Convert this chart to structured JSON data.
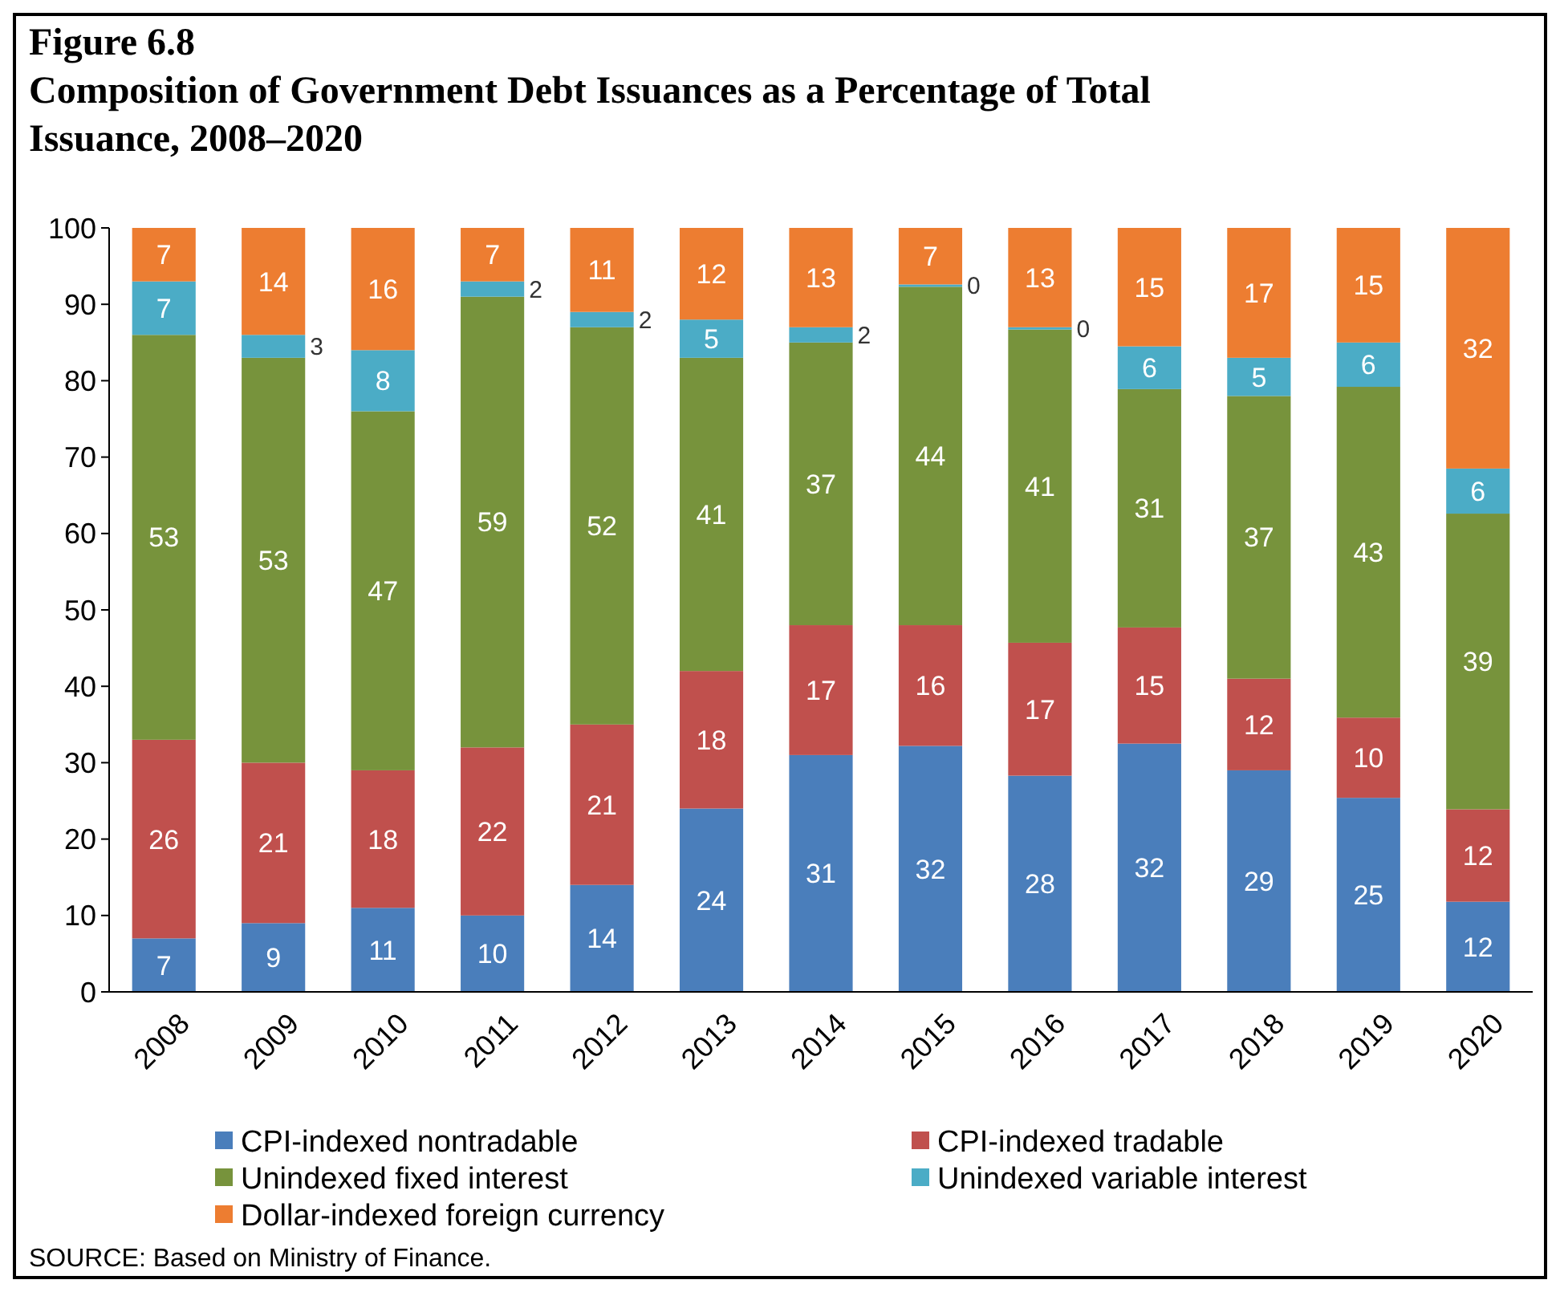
{
  "chart_data": {
    "type": "bar",
    "stacked": true,
    "title": "Figure 6.8\nComposition of Government Debt Issuances as a Percentage of Total Issuance, 2008–2020",
    "categories": [
      "2008",
      "2009",
      "2010",
      "2011",
      "2012",
      "2013",
      "2014",
      "2015",
      "2016",
      "2017",
      "2018",
      "2019",
      "2020"
    ],
    "series": [
      {
        "name": "CPI-indexed nontradable",
        "color": "#4a7ebb",
        "values": [
          7,
          9,
          11,
          10,
          14,
          24,
          31,
          32.2,
          28.3,
          32.5,
          29,
          25.4,
          11.8
        ],
        "value_labels": [
          "7",
          "9",
          "11",
          "10",
          "14",
          "24",
          "31",
          "32",
          "28",
          "32",
          "29",
          "25",
          "12"
        ]
      },
      {
        "name": "CPI-indexed tradable",
        "color": "#c0504d",
        "values": [
          26,
          21,
          18,
          22,
          21,
          18,
          17,
          15.8,
          17.4,
          15.2,
          12,
          10.5,
          12.1
        ],
        "value_labels": [
          "26",
          "21",
          "18",
          "22",
          "21",
          "18",
          "17",
          "16",
          "17",
          "15",
          "12",
          "10",
          "12"
        ]
      },
      {
        "name": "Unindexed fixed interest",
        "color": "#77933c",
        "values": [
          53,
          53,
          47,
          59,
          52,
          41,
          37,
          44.3,
          41,
          31.2,
          37,
          43.3,
          38.7
        ],
        "value_labels": [
          "53",
          "53",
          "47",
          "59",
          "52",
          "41",
          "37",
          "44",
          "41",
          "31",
          "37",
          "43",
          "39"
        ]
      },
      {
        "name": "Unindexed variable interest",
        "color": "#4bacc6",
        "values": [
          7,
          3,
          8,
          2,
          2,
          5,
          2,
          0.3,
          0.3,
          5.6,
          5,
          5.8,
          5.9
        ],
        "value_labels": [
          "7",
          "3",
          "8",
          "2",
          "2",
          "5",
          "2",
          "0",
          "0",
          "6",
          "5",
          "6",
          "6"
        ]
      },
      {
        "name": "Dollar-indexed foreign currency",
        "color": "#ed7d31",
        "values": [
          7,
          14,
          16,
          7,
          11,
          12,
          13,
          7.4,
          13,
          15.5,
          17,
          15,
          31.5
        ],
        "value_labels": [
          "7",
          "14",
          "16",
          "7",
          "11",
          "12",
          "13",
          "7",
          "13",
          "15",
          "17",
          "15",
          "32"
        ]
      }
    ],
    "ylim": [
      0,
      100
    ],
    "yticks": [
      0,
      10,
      20,
      30,
      40,
      50,
      60,
      70,
      80,
      90,
      100
    ],
    "grid": false,
    "legend": "bottom",
    "annotations": [
      "SOURCE: Based on Ministry of Finance."
    ]
  }
}
